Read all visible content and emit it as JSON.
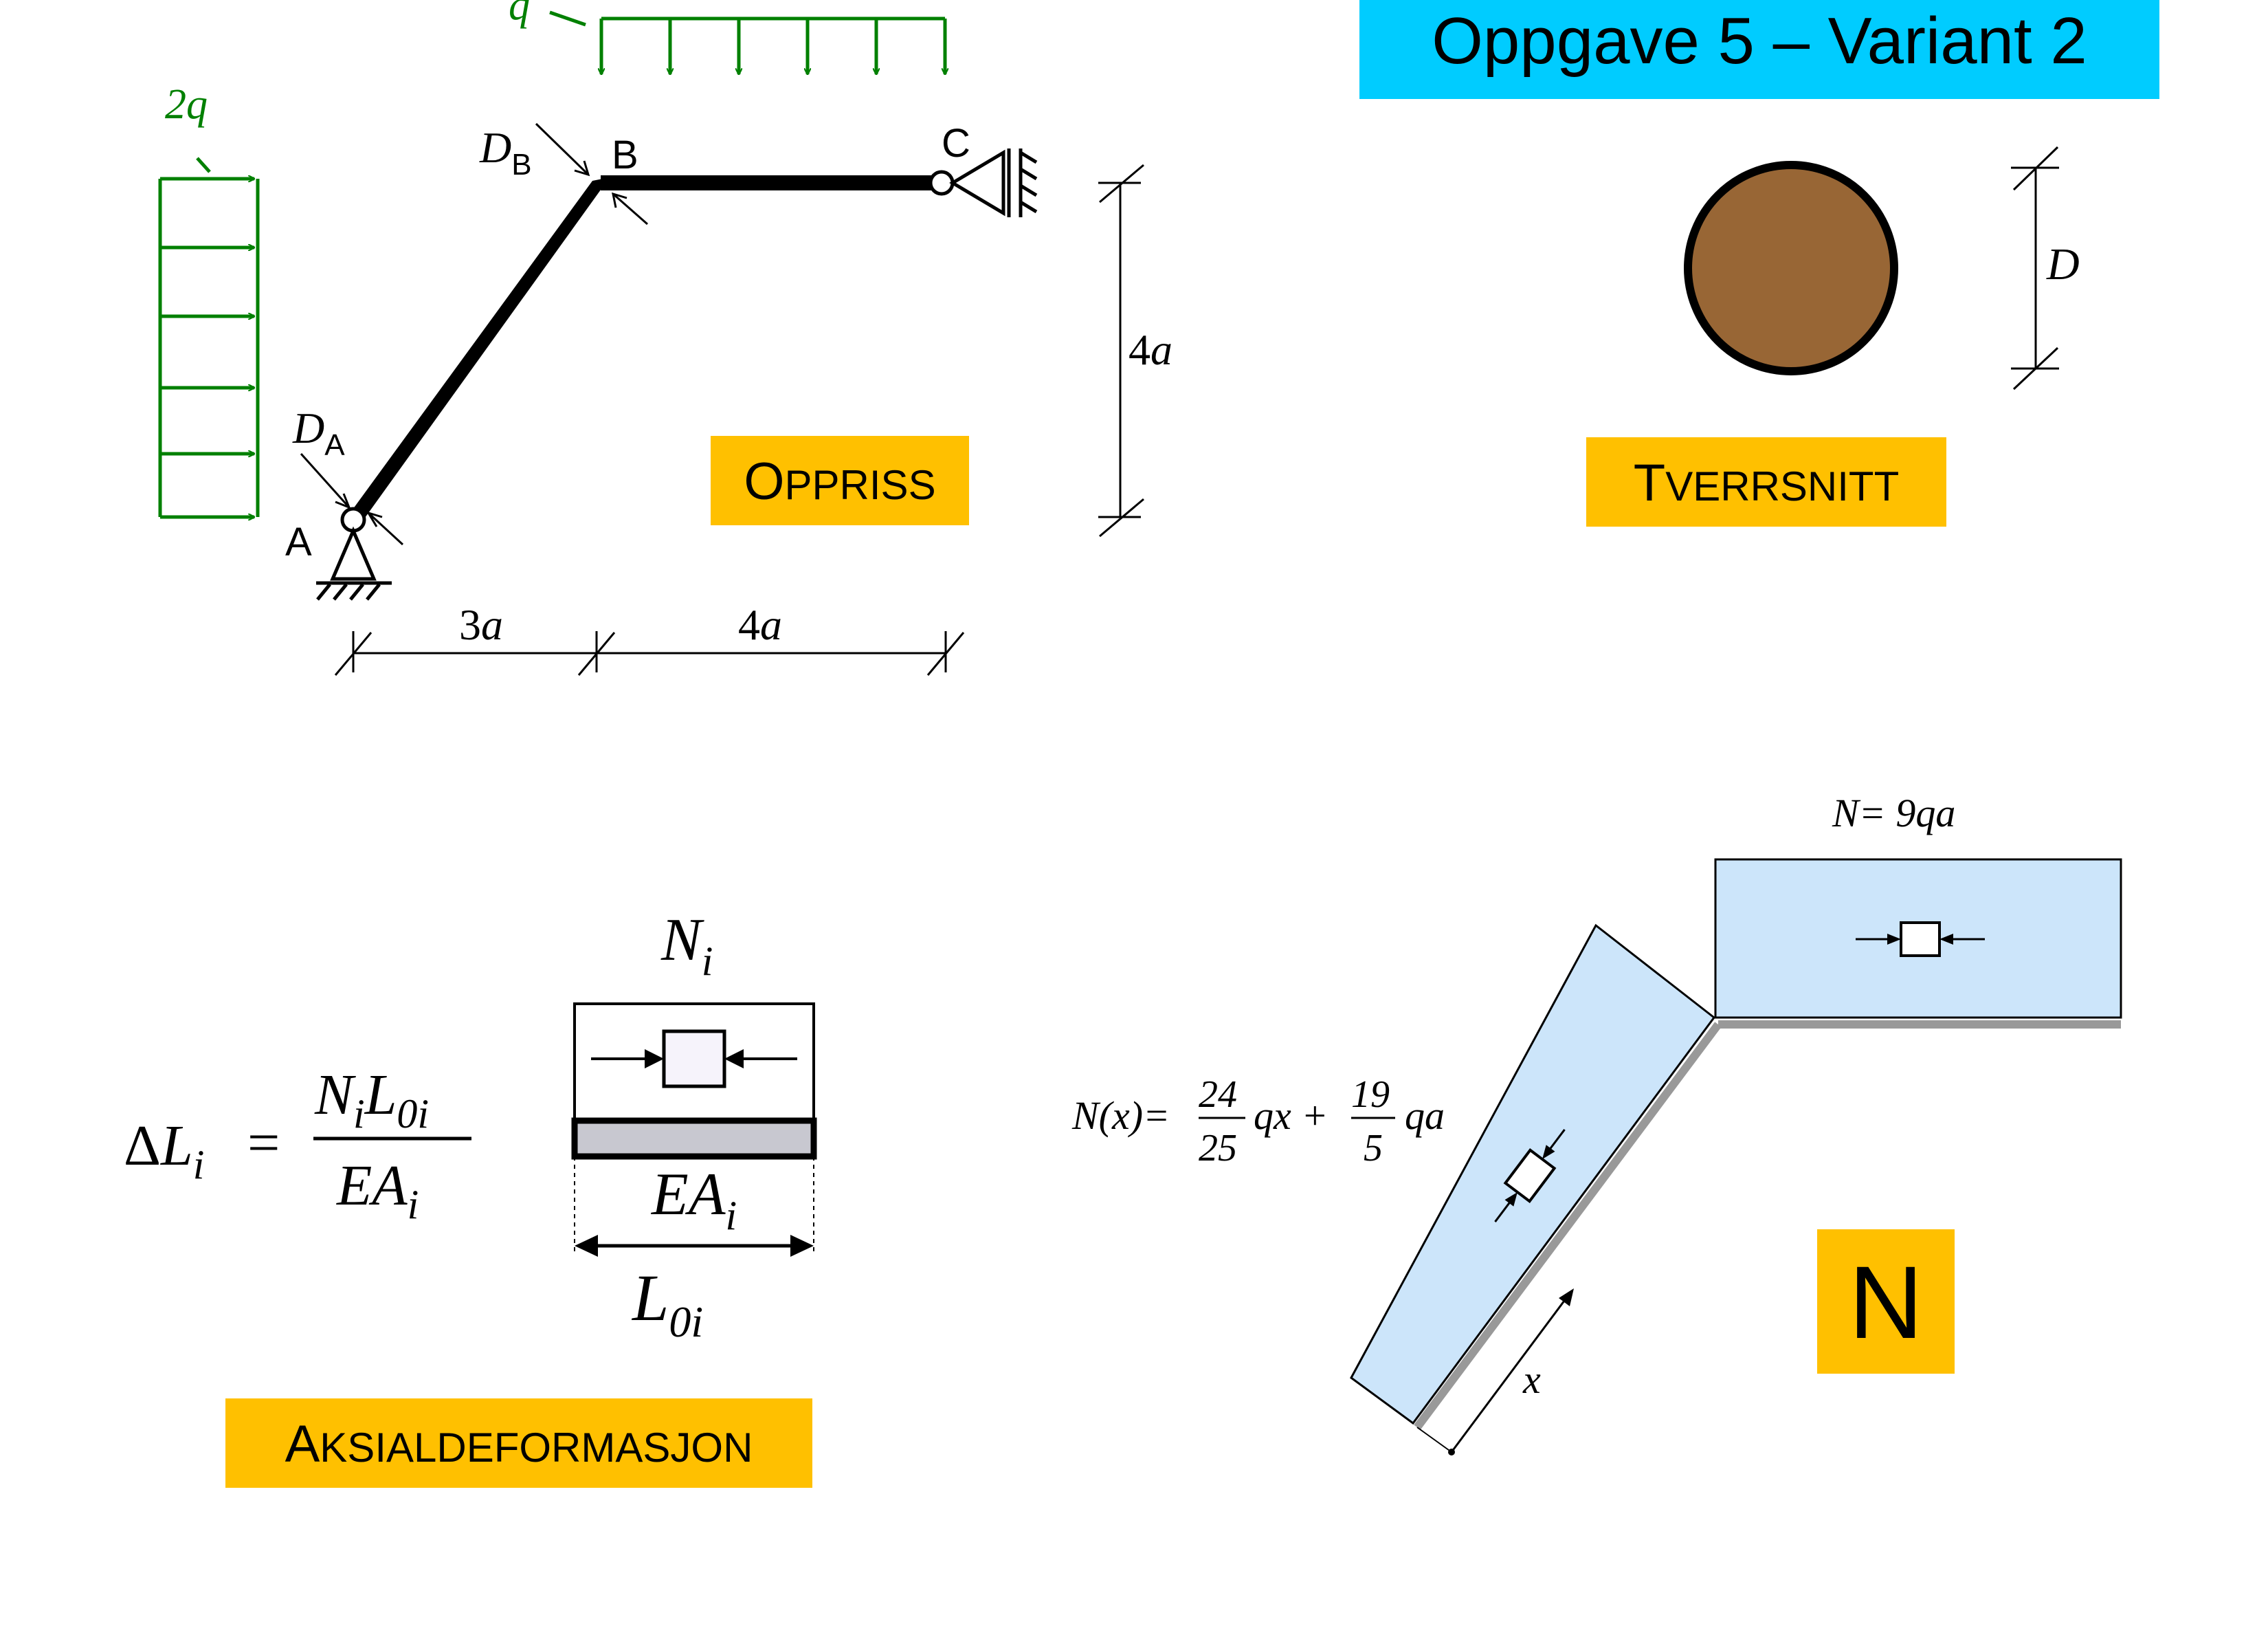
{
  "title": "Oppgave 5 – Variant 2",
  "colors": {
    "title_bg": "#00CCFF",
    "label_bg": "#FFC000",
    "load": "#008000",
    "section_fill": "#986635",
    "diagram_fill": "#CCE5FA"
  },
  "oppriss": {
    "label_first": "O",
    "label_rest": "PPRISS",
    "load_left": "2q",
    "load_top": "q",
    "point_a": "A",
    "point_b": "B",
    "point_c": "C",
    "diam_a_main": "D",
    "diam_a_sub": "A",
    "diam_b_main": "D",
    "diam_b_sub": "B",
    "dim_horizontal_1": "3",
    "dim_horizontal_2": "4",
    "dim_vertical": "4",
    "dim_unit": "a"
  },
  "tverrsnitt": {
    "label_first": "T",
    "label_rest": "VERRSNITT",
    "diameter": "D"
  },
  "aksial": {
    "label_first": "A",
    "label_rest": "KSIALDEFORMASJON",
    "delta": "Δ",
    "L": "L",
    "i": "i",
    "equals": "=",
    "N": "N",
    "zero_i": "0i",
    "EA": "EA"
  },
  "normal_force": {
    "label": "N",
    "top_value": "N= 9qa",
    "fx_left": "N(x)=",
    "frac1_num": "24",
    "frac1_den": "25",
    "term1": "qx +",
    "frac2_num": "19",
    "frac2_den": "5",
    "term2": "qa",
    "x_label": "x"
  }
}
